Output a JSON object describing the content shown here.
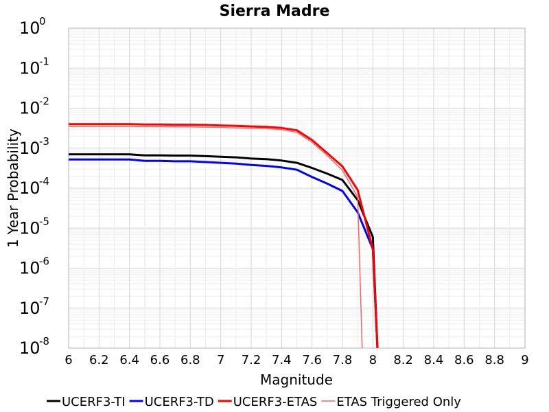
{
  "chart_data": {
    "type": "line",
    "title": "Sierra Madre",
    "xlabel": "Magnitude",
    "ylabel": "1 Year Probability",
    "xlim": [
      6,
      9
    ],
    "ylim": [
      1e-08,
      1
    ],
    "y_scale": "log",
    "grid": true,
    "legend_position": "bottom",
    "x_ticks": [
      "6",
      "6.2",
      "6.4",
      "6.6",
      "6.8",
      "7",
      "7.2",
      "7.4",
      "7.6",
      "7.8",
      "8",
      "8.2",
      "8.4",
      "8.6",
      "8.8",
      "9"
    ],
    "y_ticks": [
      {
        "base": "10",
        "exp": "0"
      },
      {
        "base": "10",
        "exp": "-1"
      },
      {
        "base": "10",
        "exp": "-2"
      },
      {
        "base": "10",
        "exp": "-3"
      },
      {
        "base": "10",
        "exp": "-4"
      },
      {
        "base": "10",
        "exp": "-5"
      },
      {
        "base": "10",
        "exp": "-6"
      },
      {
        "base": "10",
        "exp": "-7"
      },
      {
        "base": "10",
        "exp": "-8"
      }
    ],
    "series": [
      {
        "name": "UCERF3-TI",
        "color": "#000000",
        "width": 3,
        "x": [
          6.0,
          6.1,
          6.2,
          6.3,
          6.4,
          6.5,
          6.6,
          6.7,
          6.8,
          6.9,
          7.0,
          7.1,
          7.2,
          7.3,
          7.4,
          7.5,
          7.6,
          7.7,
          7.8,
          7.9,
          8.0,
          8.03
        ],
        "y": [
          0.0007,
          0.0007,
          0.0007,
          0.0007,
          0.0007,
          0.00066,
          0.00066,
          0.00065,
          0.00065,
          0.00063,
          0.00061,
          0.00059,
          0.00055,
          0.00053,
          0.00049,
          0.00043,
          0.00032,
          0.00023,
          0.00016,
          5e-05,
          6e-06,
          1e-08
        ]
      },
      {
        "name": "UCERF3-TD",
        "color": "#0000ff",
        "width": 3,
        "x": [
          6.0,
          6.1,
          6.2,
          6.3,
          6.4,
          6.5,
          6.6,
          6.7,
          6.8,
          6.9,
          7.0,
          7.1,
          7.2,
          7.3,
          7.4,
          7.5,
          7.6,
          7.7,
          7.8,
          7.9,
          8.0,
          8.03
        ],
        "y": [
          0.00052,
          0.00052,
          0.00052,
          0.00052,
          0.00052,
          0.00048,
          0.00048,
          0.00047,
          0.00047,
          0.00045,
          0.00043,
          0.00041,
          0.00038,
          0.00036,
          0.00033,
          0.00029,
          0.00019,
          0.00013,
          8.5e-05,
          2.5e-05,
          3e-06,
          1e-08
        ]
      },
      {
        "name": "UCERF3-ETAS",
        "color": "#ff0000",
        "width": 3,
        "x": [
          6.0,
          6.1,
          6.2,
          6.3,
          6.4,
          6.5,
          6.6,
          6.7,
          6.8,
          6.9,
          7.0,
          7.1,
          7.2,
          7.3,
          7.4,
          7.5,
          7.6,
          7.7,
          7.8,
          7.9,
          8.0,
          8.03
        ],
        "y": [
          0.004,
          0.004,
          0.004,
          0.004,
          0.004,
          0.0039,
          0.0039,
          0.00385,
          0.00385,
          0.0038,
          0.0037,
          0.0036,
          0.0035,
          0.0034,
          0.0032,
          0.0028,
          0.0016,
          0.00075,
          0.00035,
          9e-05,
          3e-06,
          1e-08
        ]
      },
      {
        "name": "ETAS Triggered Only",
        "color": "#ff6060",
        "width": 1.5,
        "x": [
          6.0,
          6.1,
          6.2,
          6.3,
          6.4,
          6.5,
          6.6,
          6.7,
          6.8,
          6.9,
          7.0,
          7.1,
          7.2,
          7.3,
          7.4,
          7.5,
          7.6,
          7.7,
          7.8,
          7.9,
          7.93
        ],
        "y": [
          0.0035,
          0.0035,
          0.0035,
          0.0035,
          0.0035,
          0.00345,
          0.00345,
          0.0034,
          0.0034,
          0.00335,
          0.0033,
          0.0032,
          0.00315,
          0.0031,
          0.0029,
          0.0025,
          0.0014,
          0.00065,
          0.00028,
          6e-05,
          1e-08
        ]
      }
    ]
  }
}
